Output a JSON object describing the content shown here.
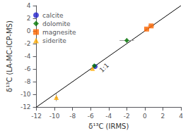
{
  "chart_data": {
    "type": "scatter",
    "title": "",
    "xlabel": "δ¹³C (IRMS)",
    "ylabel": "δ¹³C (LA-MC-ICP-MS)",
    "xlim": [
      -12,
      4
    ],
    "ylim": [
      -12,
      4
    ],
    "xticks": [
      -12,
      -10,
      -8,
      -6,
      -4,
      -2,
      0,
      2,
      4
    ],
    "yticks": [
      -12,
      -10,
      -8,
      -6,
      -4,
      -2,
      0,
      2,
      4
    ],
    "grid": false,
    "legend": "upper left",
    "reference_line": {
      "x": [
        -12,
        4
      ],
      "y": [
        -12,
        4
      ],
      "color": "#000000"
    },
    "annotations": [
      {
        "text": "1:1",
        "x": -4.5,
        "y": -5.8
      }
    ],
    "errorbar_color": "#999999",
    "series": [
      {
        "name": "calcite",
        "color": "#2222cc",
        "marker": "circle",
        "x": [
          -5.5
        ],
        "y": [
          -5.6
        ],
        "xerr": [
          0.1
        ],
        "yerr": [
          0.1
        ]
      },
      {
        "name": "dolomite",
        "color": "#007700",
        "marker": "diamond",
        "x": [
          -5.6,
          -2.0
        ],
        "y": [
          -5.5,
          -1.5
        ],
        "xerr": [
          0.1,
          0.8
        ],
        "yerr": [
          0.1,
          0.4
        ]
      },
      {
        "name": "magnesite",
        "color": "#ff6600",
        "marker": "square",
        "x": [
          0.2,
          0.7
        ],
        "y": [
          0.3,
          0.8
        ],
        "xerr": [
          0.25,
          0.35
        ],
        "yerr": [
          0.2,
          0.25
        ]
      },
      {
        "name": "siderite",
        "color": "#ffaa00",
        "marker": "triangle",
        "x": [
          -5.8,
          -9.8
        ],
        "y": [
          -5.9,
          -10.5
        ],
        "xerr": [
          0.1,
          0.15
        ],
        "yerr": [
          0.1,
          0.6
        ]
      }
    ]
  }
}
